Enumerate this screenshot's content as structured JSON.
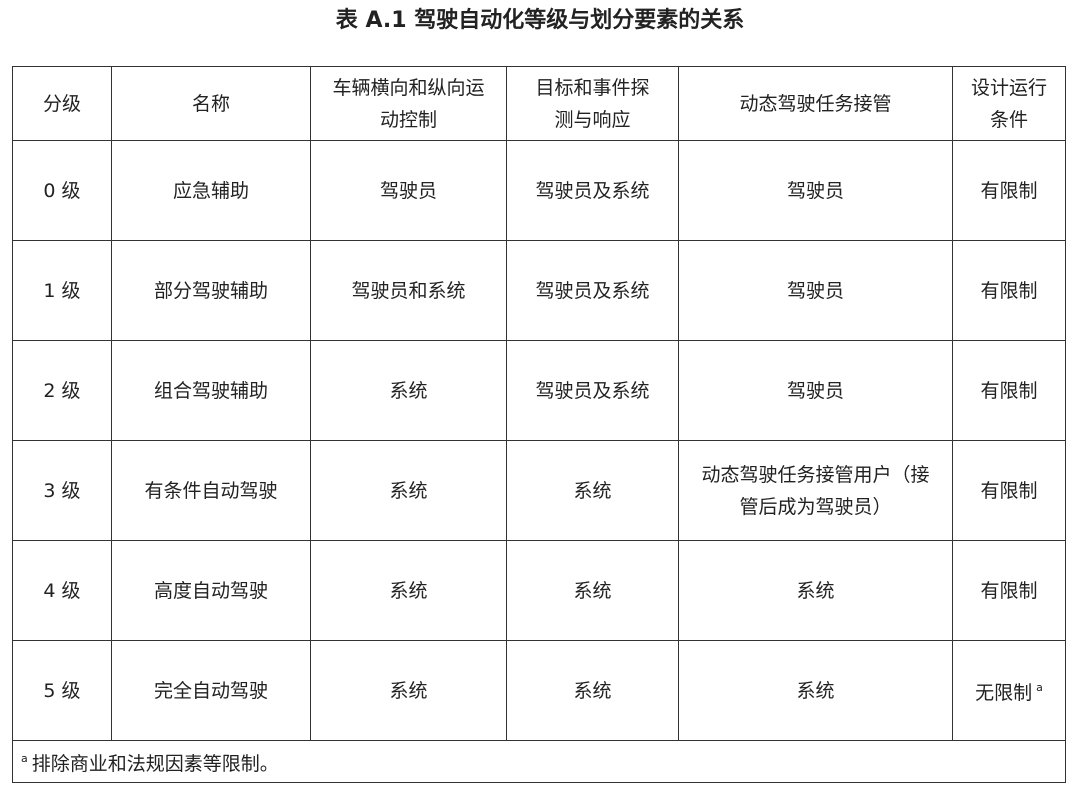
{
  "title": "表 A.1 驾驶自动化等级与划分要素的关系",
  "headers": [
    {
      "lines": [
        "分级"
      ]
    },
    {
      "lines": [
        "名称"
      ]
    },
    {
      "lines": [
        "车辆横向和纵向运",
        "动控制"
      ]
    },
    {
      "lines": [
        "目标和事件探",
        "测与响应"
      ]
    },
    {
      "lines": [
        "动态驾驶任务接管"
      ]
    },
    {
      "lines": [
        "设计运行",
        "条件"
      ]
    }
  ],
  "rows": [
    {
      "level": "0 级",
      "name": "应急辅助",
      "control": "驾驶员",
      "detection": "驾驶员及系统",
      "takeover": [
        "驾驶员"
      ],
      "odd": "有限制",
      "odd_note": ""
    },
    {
      "level": "1 级",
      "name": "部分驾驶辅助",
      "control": "驾驶员和系统",
      "detection": "驾驶员及系统",
      "takeover": [
        "驾驶员"
      ],
      "odd": "有限制",
      "odd_note": ""
    },
    {
      "level": "2 级",
      "name": "组合驾驶辅助",
      "control": "系统",
      "detection": "驾驶员及系统",
      "takeover": [
        "驾驶员"
      ],
      "odd": "有限制",
      "odd_note": ""
    },
    {
      "level": "3 级",
      "name": "有条件自动驾驶",
      "control": "系统",
      "detection": "系统",
      "takeover": [
        "动态驾驶任务接管用户（接",
        "管后成为驾驶员）"
      ],
      "odd": "有限制",
      "odd_note": ""
    },
    {
      "level": "4 级",
      "name": "高度自动驾驶",
      "control": "系统",
      "detection": "系统",
      "takeover": [
        "系统"
      ],
      "odd": "有限制",
      "odd_note": ""
    },
    {
      "level": "5 级",
      "name": "完全自动驾驶",
      "control": "系统",
      "detection": "系统",
      "takeover": [
        "系统"
      ],
      "odd": "无限制",
      "odd_note": "a"
    }
  ],
  "footnote": {
    "mark": "a",
    "text": "排除商业和法规因素等限制。"
  }
}
